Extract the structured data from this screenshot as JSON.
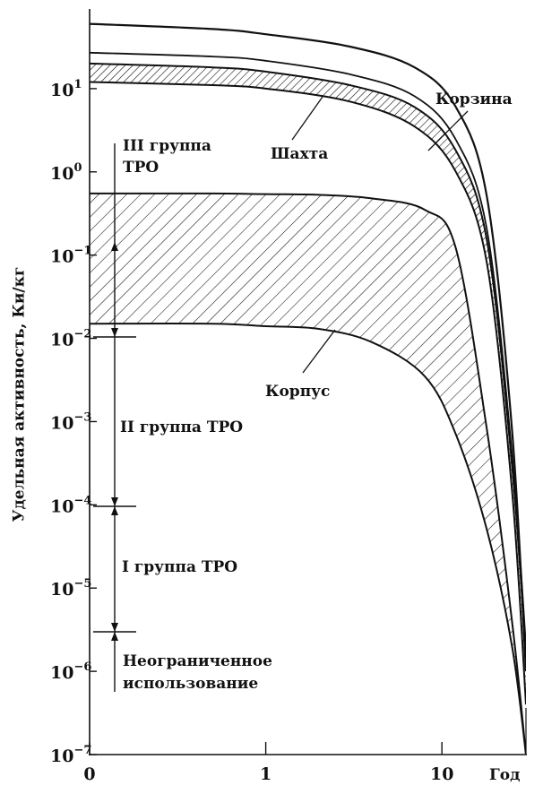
{
  "chart_data": {
    "type": "line",
    "ylabel": "Удельная активность, Ки/кг",
    "xlabel": "Год",
    "x_scale": "log",
    "y_scale": "log",
    "xlim_years": [
      0.1,
      30
    ],
    "ylim": [
      1e-07,
      100
    ],
    "x_ticks": [
      {
        "label": "0",
        "value": 0.1
      },
      {
        "label": "1",
        "value": 1
      },
      {
        "label": "10",
        "value": 10
      }
    ],
    "y_ticks": [
      {
        "base": "10",
        "exp": "1",
        "value": 10
      },
      {
        "base": "10",
        "exp": "0",
        "value": 1
      },
      {
        "base": "10",
        "exp": "−1",
        "value": 0.1
      },
      {
        "base": "10",
        "exp": "−2",
        "value": 0.01
      },
      {
        "base": "10",
        "exp": "−3",
        "value": 0.001
      },
      {
        "base": "10",
        "exp": "−4",
        "value": 0.0001
      },
      {
        "base": "10",
        "exp": "−5",
        "value": 1e-05
      },
      {
        "base": "10",
        "exp": "−6",
        "value": 1e-06
      },
      {
        "base": "10",
        "exp": "−7",
        "value": 1e-07
      }
    ],
    "series": [
      {
        "name": "Корзина",
        "type": "line",
        "x": [
          0.1,
          0.5,
          1,
          3,
          7,
          12,
          18,
          25,
          30
        ],
        "y": [
          60,
          52,
          45,
          32,
          18,
          6.0,
          0.5,
          0.0008,
          1e-06
        ]
      },
      {
        "name": "Шахта",
        "type": "band",
        "x": [
          0.1,
          0.5,
          1,
          3,
          7,
          12,
          18,
          25,
          30
        ],
        "y_upper": [
          20,
          18,
          16,
          11,
          6,
          1.8,
          0.15,
          0.0003,
          1.5e-06
        ],
        "y_lower": [
          12,
          11,
          10,
          7,
          3.5,
          1.0,
          0.08,
          0.00015,
          4e-07
        ]
      },
      {
        "name": "Корпус",
        "type": "band",
        "x": [
          0.1,
          0.5,
          1,
          2,
          4,
          8,
          12,
          18,
          25,
          30
        ],
        "y_upper": [
          0.55,
          0.55,
          0.54,
          0.53,
          0.48,
          0.35,
          0.12,
          0.0008,
          4e-06,
          1e-07
        ],
        "y_lower": [
          0.015,
          0.015,
          0.014,
          0.013,
          0.009,
          0.0035,
          0.0007,
          5e-05,
          2e-06,
          1e-07
        ]
      }
    ],
    "annotations": [
      {
        "id": "korzina",
        "text": "Корзина"
      },
      {
        "id": "shakhta",
        "text": "Шахта"
      },
      {
        "id": "korpus",
        "text": "Корпус"
      },
      {
        "id": "g3a",
        "text": "III группа"
      },
      {
        "id": "g3b",
        "text": "ТРО"
      },
      {
        "id": "g2",
        "text": "II группа ТРО"
      },
      {
        "id": "g1",
        "text": "I группа ТРО"
      },
      {
        "id": "u1",
        "text": "Неограниченное"
      },
      {
        "id": "u2",
        "text": "использование"
      }
    ],
    "thresholds": [
      {
        "between": "III/II",
        "value": 0.01
      },
      {
        "between": "II/I",
        "value": 0.0001
      },
      {
        "between": "I/unrestricted",
        "value": 3e-06
      }
    ],
    "grid": false
  }
}
